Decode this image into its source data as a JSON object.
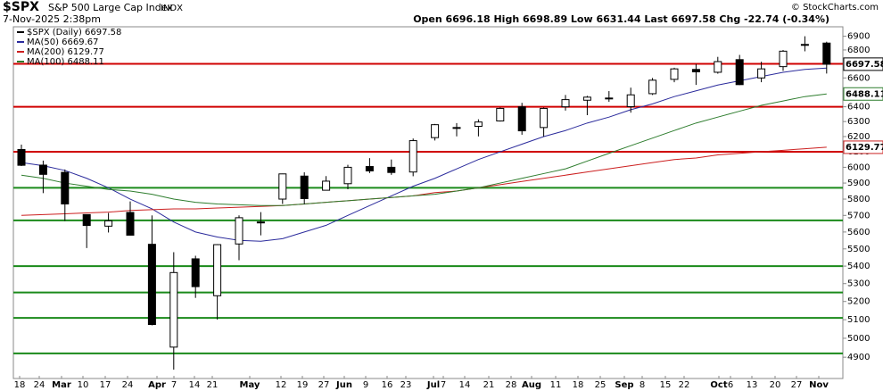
{
  "chart_data": {
    "type": "candlestick",
    "title": "$SPX",
    "subtitle": "S&P 500 Large Cap Index",
    "exchange": "INDX",
    "date": "7-Nov-2025 2:38pm",
    "quote": "Open 6696.18 High 6698.89 Low 6631.44 Last 6697.58 Chg -22.74 (-0.34%)",
    "credit": "© StockCharts.com",
    "log_scale": true,
    "ylim": [
      4790,
      6970
    ],
    "yticks": [
      4900,
      5000,
      5100,
      5200,
      5300,
      5400,
      5500,
      5600,
      5700,
      5800,
      5900,
      6000,
      6100,
      6200,
      6300,
      6400,
      6500,
      6600,
      6700,
      6800,
      6900
    ],
    "x_labels": [
      "18",
      "24",
      "Mar",
      "10",
      "17",
      "24",
      "Apr",
      "7",
      "14",
      "21",
      "May",
      "12",
      "19",
      "27",
      "Jun",
      "9",
      "16",
      "23",
      "Jul",
      "7",
      "14",
      "21",
      "28",
      "Aug",
      "11",
      "18",
      "25",
      "Sep",
      "8",
      "15",
      "22",
      "Oct",
      "6",
      "13",
      "20",
      "27",
      "Nov"
    ],
    "candles": {
      "name": "$SPX (Daily) 6697.58",
      "color": "#000000",
      "open": [
        6115,
        6014,
        5968,
        5705,
        5635,
        5718,
        5527,
        4953,
        5442,
        5232,
        5529,
        5655,
        5800,
        5944,
        5855,
        5896,
        6005,
        6000,
        5970,
        6193,
        6260,
        6268,
        6304,
        6400,
        6260,
        6400,
        6445,
        6457,
        6401,
        6490,
        6590,
        6660,
        6640,
        6730,
        6600,
        6680,
        6840,
        6850
      ],
      "high": [
        6147,
        6043,
        5986,
        5705,
        5715,
        5786,
        5700,
        5481,
        5460,
        5528,
        5700,
        5720,
        5960,
        5968,
        5944,
        6016,
        6059,
        6050,
        6187,
        6284,
        6290,
        6315,
        6395,
        6427,
        6395,
        6481,
        6475,
        6508,
        6532,
        6600,
        6672,
        6699,
        6750,
        6764,
        6715,
        6800,
        6900,
        6860
      ],
      "low": [
        6008,
        5837,
        5666,
        5505,
        5597,
        5580,
        5069,
        4835,
        5220,
        5101,
        5434,
        5580,
        5770,
        5767,
        5858,
        5861,
        5963,
        5952,
        5943,
        6174,
        6201,
        6201,
        6300,
        6212,
        6200,
        6374,
        6343,
        6434,
        6360,
        6481,
        6570,
        6551,
        6630,
        6550,
        6570,
        6650,
        6790,
        6631
      ],
      "close": [
        6013,
        5955,
        5770,
        5639,
        5667,
        5581,
        5074,
        5363,
        5283,
        5525,
        5686,
        5660,
        5958,
        5803,
        5912,
        6000,
        5977,
        5967,
        6173,
        6279,
        6259,
        6297,
        6389,
        6238,
        6389,
        6449,
        6466,
        6460,
        6482,
        6584,
        6664,
        6643,
        6716,
        6553,
        6664,
        6791,
        6840,
        6697
      ]
    },
    "series": [
      {
        "name": "MA(50) 6669.67",
        "color": "#2b2b9c",
        "values": [
          6030,
          6010,
          5980,
          5930,
          5870,
          5800,
          5740,
          5660,
          5600,
          5570,
          5550,
          5545,
          5560,
          5600,
          5640,
          5700,
          5760,
          5820,
          5880,
          5930,
          5990,
          6050,
          6100,
          6150,
          6200,
          6240,
          6290,
          6330,
          6380,
          6420,
          6470,
          6510,
          6550,
          6580,
          6610,
          6640,
          6660,
          6670
        ]
      },
      {
        "name": "MA(200) 6129.77",
        "color": "#cc2020",
        "values": [
          5700,
          5705,
          5710,
          5715,
          5720,
          5730,
          5735,
          5740,
          5740,
          5745,
          5750,
          5755,
          5760,
          5770,
          5780,
          5790,
          5800,
          5810,
          5820,
          5840,
          5850,
          5870,
          5890,
          5910,
          5930,
          5950,
          5970,
          5990,
          6010,
          6030,
          6050,
          6060,
          6080,
          6090,
          6100,
          6110,
          6120,
          6130
        ]
      },
      {
        "name": "MA(100) 6488.11",
        "color": "#2e7d2e",
        "values": [
          5950,
          5930,
          5900,
          5880,
          5860,
          5850,
          5830,
          5800,
          5780,
          5770,
          5765,
          5760,
          5760,
          5770,
          5780,
          5790,
          5800,
          5810,
          5820,
          5830,
          5850,
          5870,
          5900,
          5930,
          5960,
          5990,
          6040,
          6090,
          6140,
          6190,
          6240,
          6290,
          6330,
          6370,
          6410,
          6440,
          6470,
          6488
        ]
      }
    ],
    "levels": [
      {
        "value": 6700,
        "color": "#d00000"
      },
      {
        "value": 6400,
        "color": "#d00000"
      },
      {
        "value": 6100,
        "color": "#d00000"
      },
      {
        "value": 5870,
        "color": "#1a8a1a"
      },
      {
        "value": 5670,
        "color": "#1a8a1a"
      },
      {
        "value": 5400,
        "color": "#1a8a1a"
      },
      {
        "value": 5250,
        "color": "#1a8a1a"
      },
      {
        "value": 5110,
        "color": "#1a8a1a"
      },
      {
        "value": 4920,
        "color": "#1a8a1a"
      }
    ],
    "flags": [
      {
        "value": 6697.58,
        "label": "6697.58",
        "color": "#000000"
      },
      {
        "value": 6488.11,
        "label": "6488.11",
        "color": "#2e7d2e"
      },
      {
        "value": 6129.77,
        "label": "6129.77",
        "color": "#cc2020"
      }
    ]
  }
}
